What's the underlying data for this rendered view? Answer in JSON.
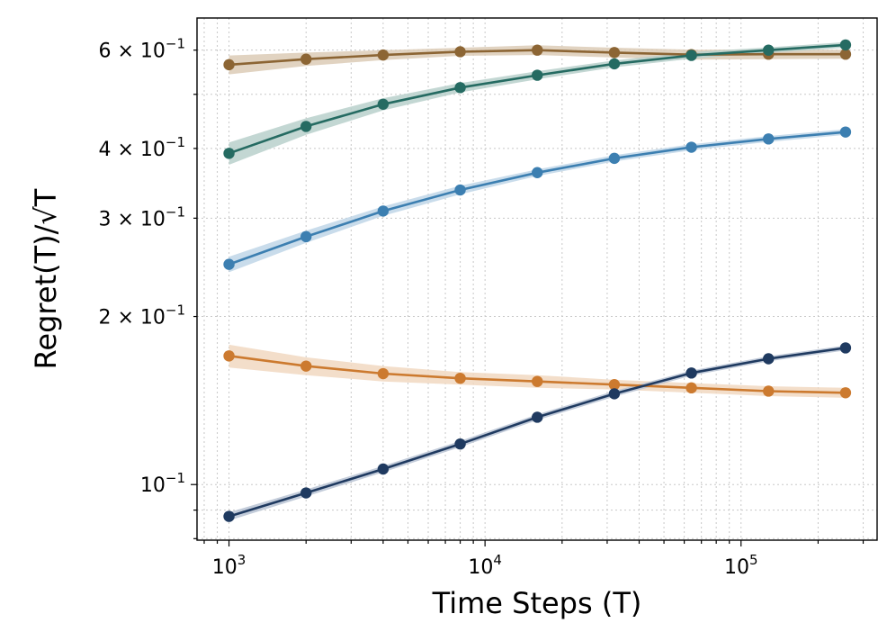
{
  "chart_data": {
    "type": "line",
    "title": "",
    "xlabel": "Time Steps (T)",
    "ylabel": "Regret(T)/√T",
    "xscale": "log",
    "yscale": "log",
    "xlim": [
      750,
      340000
    ],
    "ylim": [
      0.0795,
      0.685
    ],
    "grid": true,
    "x": [
      1000,
      2000,
      4000,
      8000,
      16000,
      32000,
      64000,
      128000,
      256000
    ],
    "x_tick_labels": [
      {
        "base": "10",
        "exp": "3",
        "value": 1000
      },
      {
        "base": "10",
        "exp": "4",
        "value": 10000
      },
      {
        "base": "10",
        "exp": "5",
        "value": 100000
      }
    ],
    "y_tick_labels": [
      {
        "mant": "",
        "base": "10",
        "exp": "−1",
        "value": 0.1
      },
      {
        "mant": "2 × ",
        "base": "10",
        "exp": "−1",
        "value": 0.2
      },
      {
        "mant": "3 × ",
        "base": "10",
        "exp": "−1",
        "value": 0.3
      },
      {
        "mant": "4 × ",
        "base": "10",
        "exp": "−1",
        "value": 0.4
      },
      {
        "mant": "6 × ",
        "base": "10",
        "exp": "−1",
        "value": 0.6
      }
    ],
    "series": [
      {
        "name": "brown",
        "color": "#8c6534",
        "band_color": "#dccbb6",
        "values": [
          0.565,
          0.578,
          0.588,
          0.596,
          0.6,
          0.594,
          0.589,
          0.59,
          0.59
        ],
        "band": [
          0.022,
          0.016,
          0.012,
          0.01,
          0.012,
          0.012,
          0.012,
          0.012,
          0.011
        ]
      },
      {
        "name": "teal",
        "color": "#256b62",
        "band_color": "#b9d0cb",
        "values": [
          0.392,
          0.438,
          0.48,
          0.514,
          0.541,
          0.567,
          0.587,
          0.6,
          0.613
        ],
        "band": [
          0.018,
          0.015,
          0.012,
          0.01,
          0.009,
          0.008,
          0.008,
          0.007,
          0.007
        ]
      },
      {
        "name": "blue",
        "color": "#3c7fb1",
        "band_color": "#bfd6e8",
        "values": [
          0.248,
          0.278,
          0.309,
          0.337,
          0.362,
          0.384,
          0.402,
          0.416,
          0.428
        ],
        "band": [
          0.008,
          0.007,
          0.006,
          0.006,
          0.005,
          0.005,
          0.005,
          0.005,
          0.005
        ]
      },
      {
        "name": "orange",
        "color": "#cc7a2f",
        "band_color": "#f1d8c1",
        "values": [
          0.17,
          0.163,
          0.158,
          0.155,
          0.153,
          0.151,
          0.149,
          0.147,
          0.146
        ],
        "band": [
          0.008,
          0.006,
          0.005,
          0.004,
          0.004,
          0.003,
          0.003,
          0.003,
          0.003
        ]
      },
      {
        "name": "navy",
        "color": "#1f3a60",
        "band_color": "#b9c3d4",
        "values": [
          0.0877,
          0.0966,
          0.1066,
          0.1182,
          0.132,
          0.1454,
          0.1584,
          0.168,
          0.1757
        ],
        "band": [
          0.0015,
          0.0014,
          0.0014,
          0.0015,
          0.0016,
          0.0017,
          0.0017,
          0.0018,
          0.0018
        ]
      }
    ]
  }
}
